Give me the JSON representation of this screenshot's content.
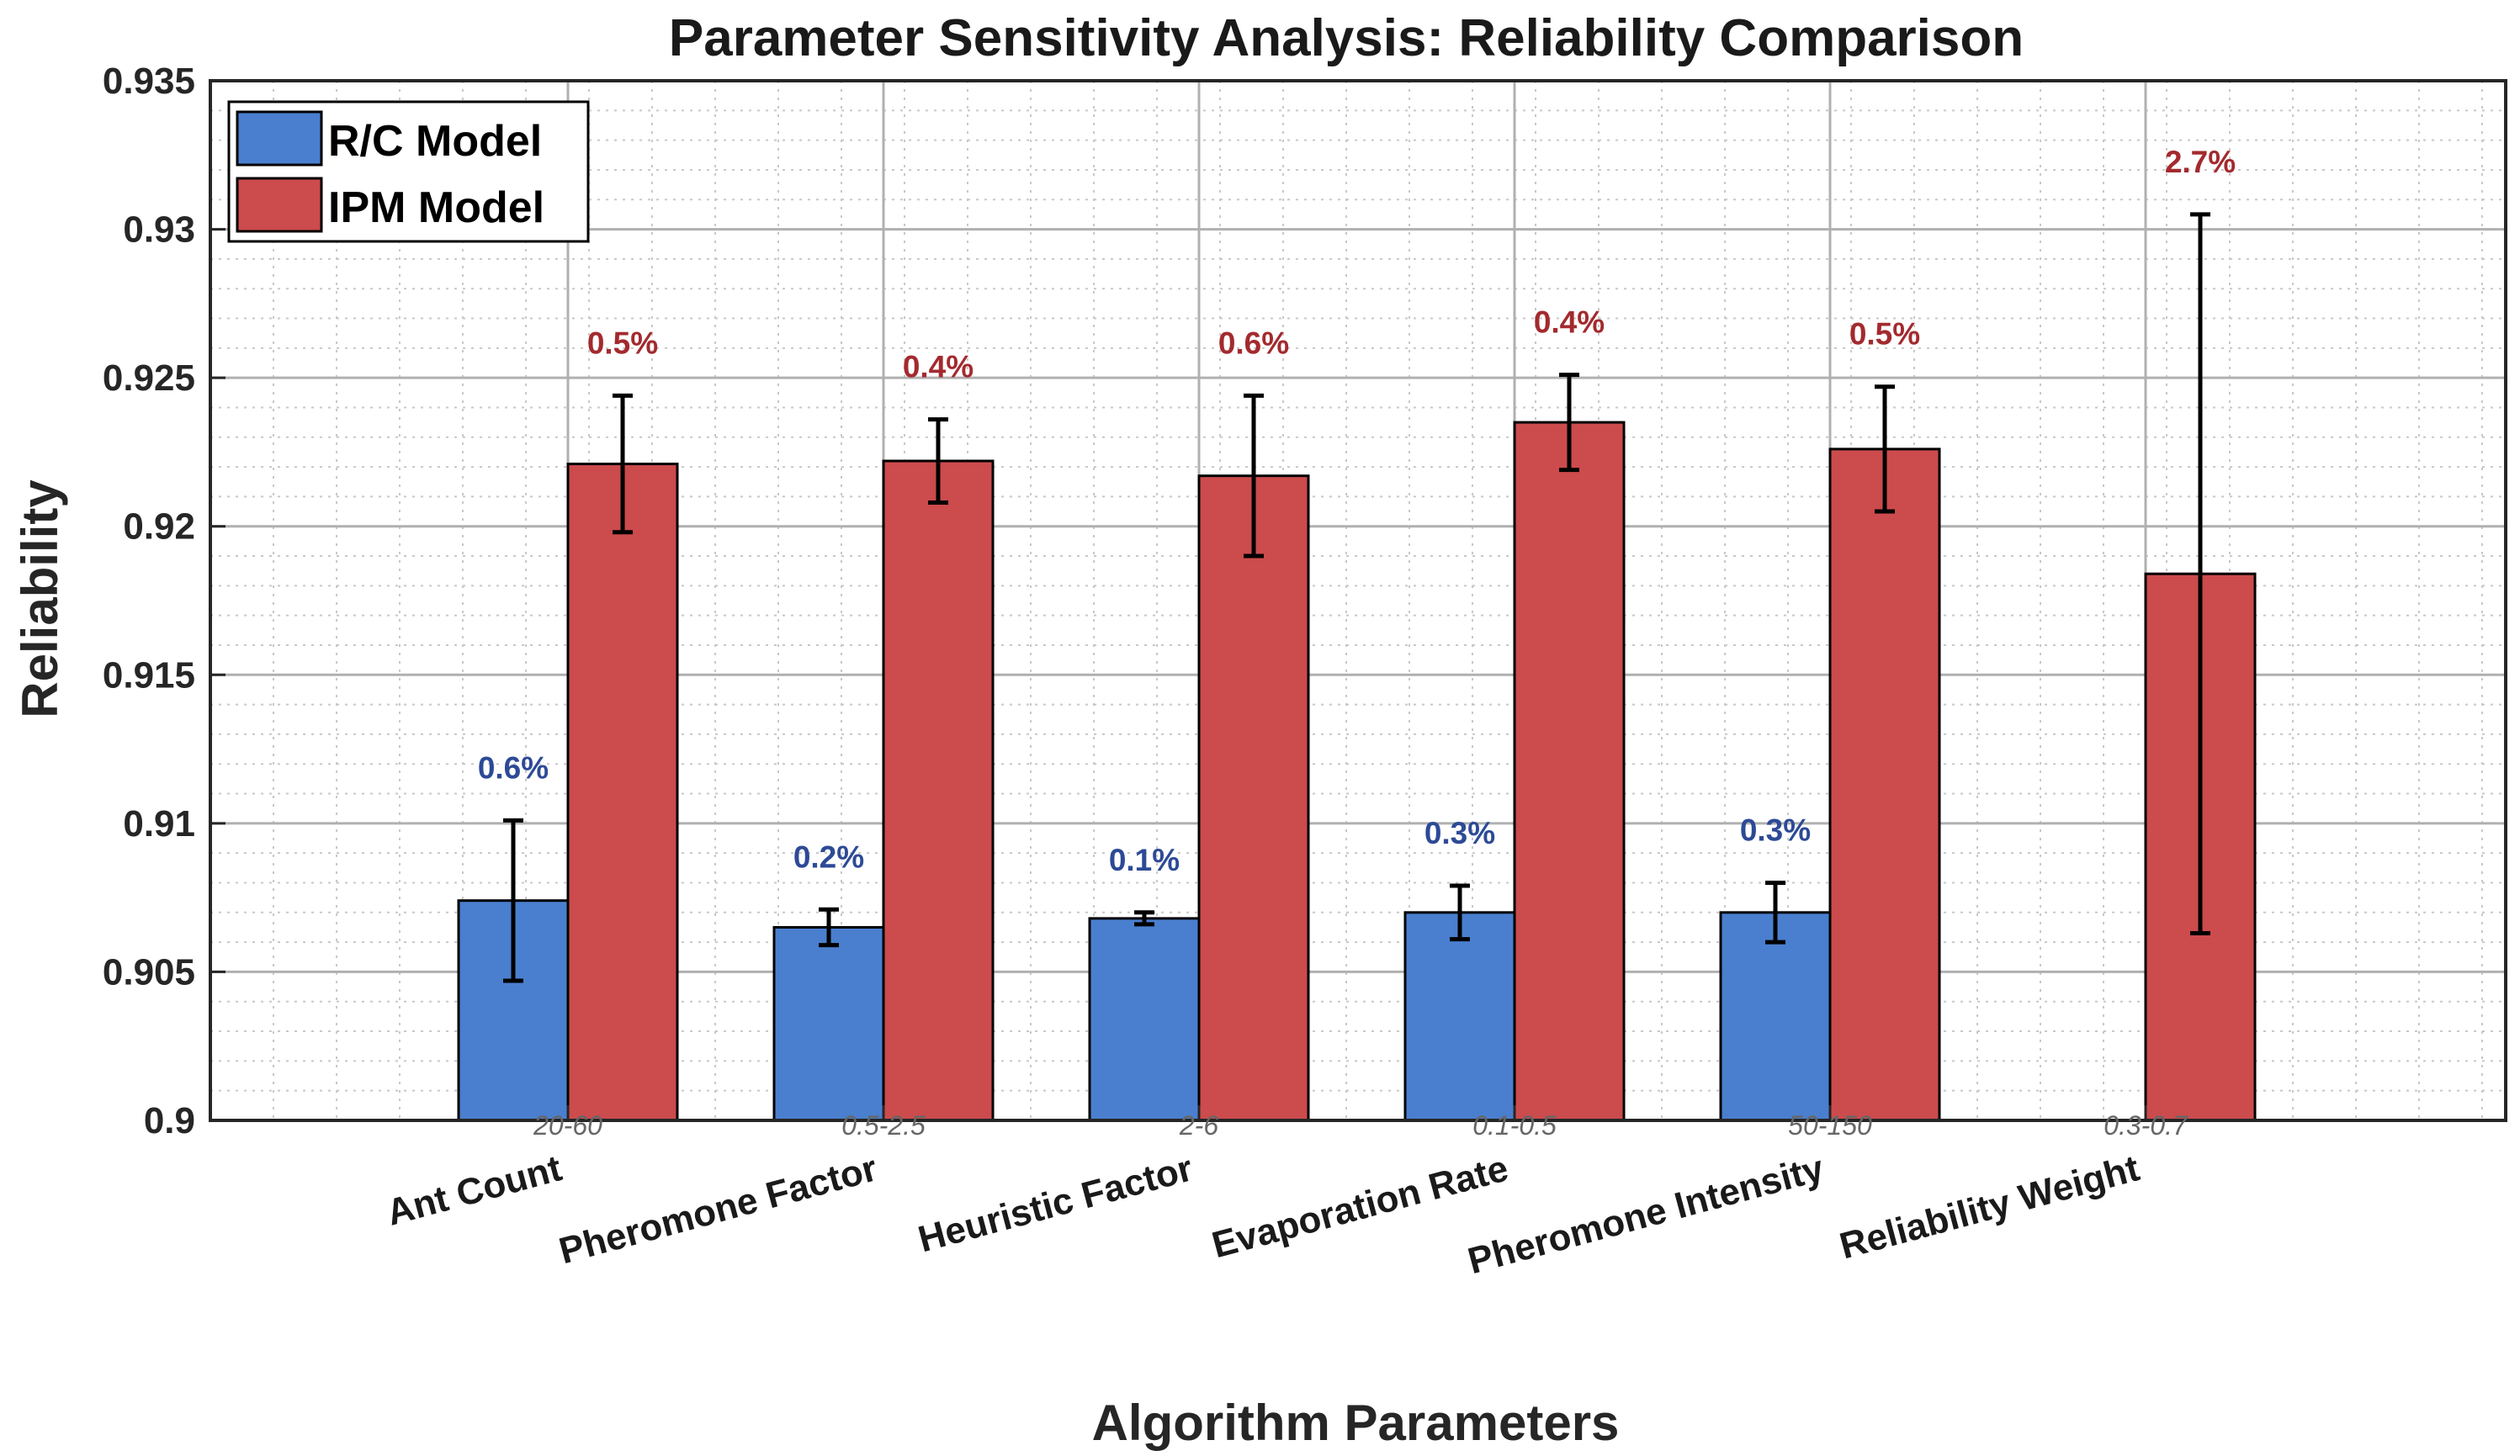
{
  "chart_data": {
    "type": "bar",
    "title": "Parameter Sensitivity Analysis: Reliability Comparison",
    "xlabel": "Algorithm Parameters",
    "ylabel": "Reliability",
    "ylim": [
      0.9,
      0.935
    ],
    "yticks": [
      0.9,
      0.905,
      0.91,
      0.915,
      0.92,
      0.925,
      0.93,
      0.935
    ],
    "ytick_labels": [
      "0.9",
      "0.905",
      "0.91",
      "0.915",
      "0.92",
      "0.925",
      "0.93",
      "0.935"
    ],
    "grid": true,
    "legend_position": "top-left",
    "categories": [
      "Ant Count",
      "Pheromone Factor",
      "Heuristic Factor",
      "Evaporation Rate",
      "Pheromone Intensity",
      "Reliability Weight"
    ],
    "ranges": [
      "20-60",
      "0.5-2.5",
      "2-6",
      "0.1-0.5",
      "50-150",
      "0.3-0.7"
    ],
    "series": [
      {
        "name": "R/C Model",
        "color": "#4a7fcf",
        "label_color": "#2d4a96",
        "values": [
          0.9074,
          0.9065,
          0.9068,
          0.907,
          0.907,
          null
        ],
        "errors": [
          0.0027,
          0.0006,
          0.0002,
          0.0009,
          0.001,
          null
        ],
        "labels": [
          "0.6%",
          "0.2%",
          "0.1%",
          "0.3%",
          "0.3%",
          null
        ]
      },
      {
        "name": "IPM Model",
        "color": "#cc4b4d",
        "label_color": "#a32a2e",
        "values": [
          0.9221,
          0.9222,
          0.9217,
          0.9235,
          0.9226,
          0.9184
        ],
        "errors": [
          0.0023,
          0.0014,
          0.0027,
          0.0016,
          0.0021,
          0.0121
        ],
        "labels": [
          "0.5%",
          "0.4%",
          "0.6%",
          "0.4%",
          "0.5%",
          "2.7%"
        ]
      }
    ]
  }
}
